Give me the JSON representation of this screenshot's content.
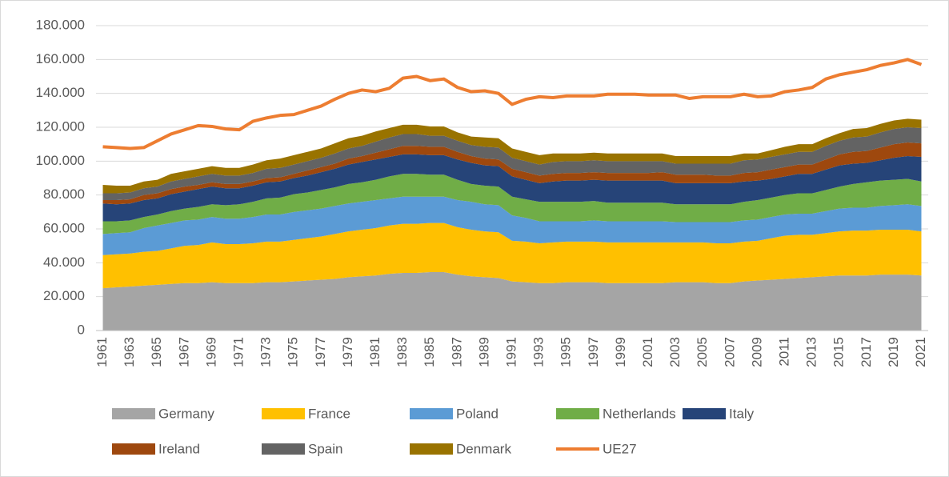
{
  "chart_data": {
    "type": "area",
    "categories": [
      "1961",
      null,
      "1963",
      null,
      "1965",
      null,
      "1967",
      null,
      "1969",
      null,
      "1971",
      null,
      "1973",
      null,
      "1975",
      null,
      "1977",
      null,
      "1979",
      null,
      "1981",
      null,
      "1983",
      null,
      "1985",
      null,
      "1987",
      null,
      "1989",
      null,
      "1991",
      null,
      "1993",
      null,
      "1995",
      null,
      "1997",
      null,
      "1999",
      null,
      "2001",
      null,
      "2003",
      null,
      "2005",
      null,
      "2007",
      null,
      "2009",
      null,
      "2011",
      null,
      "2013",
      null,
      "2015",
      null,
      "2017",
      null,
      "2019",
      null,
      "2021"
    ],
    "series": [
      {
        "name": "Germany",
        "color": "#a5a5a5",
        "values": [
          25000,
          25500,
          26000,
          26500,
          27000,
          27500,
          28000,
          28000,
          28500,
          28000,
          28000,
          28000,
          28500,
          28500,
          29000,
          29500,
          30000,
          30500,
          31500,
          32000,
          32500,
          33500,
          34000,
          34000,
          34500,
          34500,
          33000,
          32000,
          31500,
          31000,
          29000,
          28500,
          28000,
          28000,
          28500,
          28500,
          28500,
          28000,
          28000,
          28000,
          28000,
          28000,
          28500,
          28500,
          28500,
          28000,
          28000,
          29000,
          29500,
          30000,
          30500,
          31000,
          31500,
          32000,
          32500,
          32500,
          32500,
          33000,
          33000,
          33000,
          32500
        ]
      },
      {
        "name": "France",
        "color": "#ffc000",
        "values": [
          19500,
          19500,
          19500,
          20000,
          20000,
          21000,
          22000,
          22500,
          23500,
          23000,
          23000,
          23500,
          24000,
          24000,
          24500,
          25000,
          25500,
          26500,
          27000,
          27500,
          28000,
          28500,
          29000,
          29000,
          29000,
          29000,
          28000,
          27500,
          27000,
          27000,
          24000,
          24000,
          23500,
          24000,
          24000,
          24000,
          24000,
          24000,
          24000,
          24000,
          24000,
          24000,
          23500,
          23500,
          23500,
          23500,
          23500,
          23500,
          23500,
          24500,
          25500,
          25500,
          25000,
          25500,
          26000,
          26500,
          26500,
          26500,
          26500,
          26500,
          26000
        ]
      },
      {
        "name": "Poland",
        "color": "#5b9bd5",
        "values": [
          12500,
          12500,
          12500,
          14000,
          15000,
          15000,
          15000,
          15000,
          15000,
          15000,
          15000,
          15500,
          16000,
          16000,
          16500,
          16500,
          16500,
          16500,
          16500,
          16500,
          16500,
          16000,
          16000,
          16000,
          15500,
          15500,
          16000,
          16500,
          16000,
          16000,
          15000,
          14000,
          13000,
          12500,
          12000,
          12000,
          12500,
          12500,
          12500,
          12500,
          12500,
          12500,
          12000,
          12000,
          12000,
          12500,
          12500,
          12500,
          12500,
          12500,
          12500,
          12500,
          12500,
          13000,
          13500,
          13500,
          13500,
          14000,
          14500,
          15000,
          15000
        ]
      },
      {
        "name": "Netherlands",
        "color": "#70ad47",
        "values": [
          7500,
          7000,
          7000,
          6500,
          6500,
          7000,
          7000,
          7500,
          7500,
          8000,
          8500,
          9000,
          9500,
          10000,
          10500,
          10500,
          11000,
          11000,
          11500,
          11500,
          12000,
          13000,
          13500,
          13500,
          13000,
          13000,
          12000,
          10500,
          11000,
          11000,
          11000,
          11000,
          11500,
          11500,
          11500,
          11500,
          11500,
          11000,
          11000,
          11000,
          11000,
          11000,
          10500,
          10500,
          10500,
          10500,
          10500,
          11000,
          11500,
          11500,
          11500,
          12000,
          12000,
          12500,
          13000,
          14000,
          15000,
          15000,
          15000,
          15000,
          14500
        ]
      },
      {
        "name": "Italy",
        "color": "#264478",
        "values": [
          10500,
          10000,
          10000,
          10000,
          9500,
          10000,
          10000,
          10500,
          10500,
          10000,
          9500,
          9500,
          9500,
          9500,
          9500,
          10000,
          10500,
          11000,
          11500,
          12000,
          12000,
          11500,
          11500,
          11500,
          11500,
          11500,
          12000,
          12500,
          12000,
          12000,
          12000,
          11500,
          11000,
          12000,
          12500,
          12500,
          12500,
          13000,
          13000,
          13000,
          13000,
          13000,
          12500,
          12500,
          12500,
          12500,
          12500,
          12000,
          11500,
          11000,
          11000,
          11500,
          11500,
          12000,
          12500,
          12000,
          11500,
          12000,
          13000,
          13500,
          14500
        ]
      },
      {
        "name": "Ireland",
        "color": "#9e480e",
        "values": [
          2000,
          2500,
          2500,
          3000,
          3000,
          3000,
          3000,
          2500,
          2500,
          2500,
          2500,
          2500,
          2500,
          2500,
          2500,
          3000,
          3000,
          3000,
          3500,
          3500,
          4000,
          4500,
          5000,
          5000,
          5000,
          5000,
          4500,
          4000,
          4000,
          4000,
          4500,
          4500,
          4500,
          4500,
          4500,
          4500,
          4500,
          4500,
          4500,
          4500,
          4500,
          5000,
          5000,
          5000,
          5000,
          4500,
          4500,
          5000,
          5000,
          5500,
          5500,
          5500,
          5500,
          6000,
          6500,
          7000,
          7000,
          7500,
          8000,
          8000,
          8000
        ]
      },
      {
        "name": "Spain",
        "color": "#636363",
        "values": [
          4000,
          4000,
          4000,
          4000,
          4000,
          4500,
          4500,
          5000,
          5000,
          5000,
          5000,
          5000,
          5500,
          5500,
          5500,
          5500,
          5500,
          6000,
          6000,
          6000,
          6500,
          7000,
          7000,
          7000,
          6500,
          6500,
          6500,
          6500,
          7000,
          7000,
          6500,
          6500,
          6500,
          7000,
          7000,
          7000,
          7000,
          7000,
          7000,
          7000,
          7000,
          6500,
          6500,
          6500,
          6500,
          7000,
          7000,
          7500,
          7500,
          7500,
          7500,
          7500,
          7500,
          8000,
          8000,
          8500,
          8500,
          9000,
          9000,
          9000,
          9000
        ]
      },
      {
        "name": "Denmark",
        "color": "#997300",
        "values": [
          5000,
          4500,
          4000,
          4000,
          4000,
          4500,
          4500,
          4500,
          4500,
          4500,
          4500,
          5000,
          5000,
          5500,
          5500,
          5500,
          5500,
          6000,
          6000,
          6000,
          6000,
          5500,
          5500,
          5500,
          5500,
          5500,
          5000,
          5000,
          5500,
          5500,
          5500,
          5500,
          5500,
          5000,
          4500,
          4500,
          4500,
          4500,
          4500,
          4500,
          4500,
          4500,
          4500,
          4500,
          4500,
          4500,
          4500,
          4000,
          3500,
          4000,
          4500,
          4500,
          4500,
          4500,
          4500,
          5000,
          5000,
          5000,
          5000,
          5000,
          5000
        ]
      },
      {
        "name": "UE27",
        "color": "#ed7d31",
        "type": "line",
        "values": [
          108500,
          108000,
          107500,
          108000,
          112000,
          116000,
          118500,
          121000,
          120500,
          119000,
          118500,
          123500,
          125500,
          127000,
          127500,
          130000,
          132500,
          136500,
          140000,
          142000,
          141000,
          143000,
          149000,
          150000,
          147500,
          148500,
          143500,
          141000,
          141500,
          140000,
          133500,
          136500,
          138000,
          137500,
          138500,
          138500,
          138500,
          139500,
          139500,
          139500,
          139000,
          139000,
          139000,
          137000,
          138000,
          138000,
          138000,
          139500,
          138000,
          138500,
          141000,
          142000,
          143500,
          148500,
          151000,
          152500,
          154000,
          156500,
          158000,
          160000,
          157000
        ]
      }
    ],
    "ylim": [
      0,
      180000
    ],
    "yticks": [
      0,
      {
        "value": 20000,
        "label": "20.000"
      },
      {
        "value": 40000,
        "label": "40.000"
      },
      {
        "value": 60000,
        "label": "60.000"
      },
      {
        "value": 80000,
        "label": "80.000"
      },
      {
        "value": 100000,
        "label": "100.000"
      },
      {
        "value": 120000,
        "label": "120.000"
      },
      {
        "value": 140000,
        "label": "140.000"
      },
      {
        "value": 160000,
        "label": "160.000"
      },
      {
        "value": 180000,
        "label": "180.000"
      }
    ],
    "grid": true,
    "legend": "bottom"
  }
}
